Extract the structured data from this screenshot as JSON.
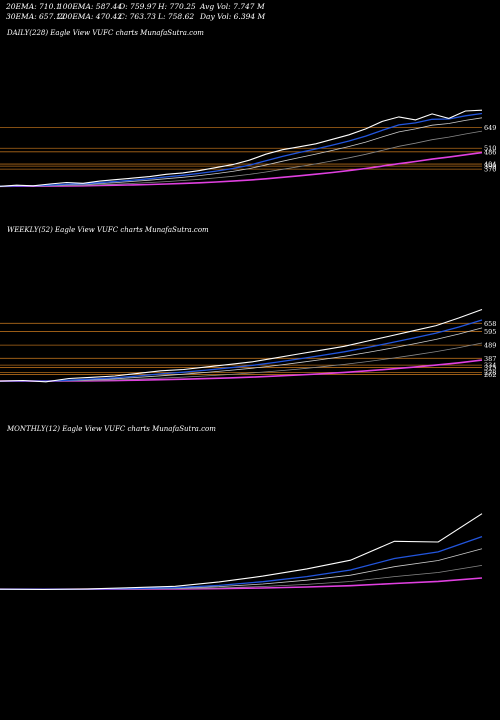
{
  "header": {
    "ema20": "20EMA: 710.1",
    "ema100": "100EMA: 587.44",
    "open": "O: 759.97",
    "high": "H: 770.25",
    "avg_vol": "Avg Vol: 7.747 M",
    "ema30": "30EMA: 657.12",
    "ema200": "200EMA: 470.42",
    "close": "C: 763.73",
    "low": "L: 758.62",
    "day_vol": "Day Vol: 6.394 M"
  },
  "colors": {
    "price": "#ffffff",
    "ema_fast": "#2255dd",
    "ema_mid": "#cccccc",
    "ema_slow": "#888888",
    "ema200": "#e040e0",
    "orange_level": "#b06a1a"
  },
  "chart_data": [
    {
      "type": "line",
      "title": "DAILY(228) Eagle   View  VUFC charts MunafaSutra.com",
      "price_labels": [
        "649",
        "510",
        "486",
        "404",
        "390",
        "370"
      ],
      "levels": [
        649,
        510,
        486,
        404,
        390,
        370
      ],
      "series": [
        {
          "values": [
            255,
            262,
            258,
            270,
            280,
            275,
            290,
            300,
            310,
            320,
            335,
            345,
            360,
            380,
            400,
            430,
            470,
            500,
            520,
            540,
            570,
            600,
            640,
            690,
            720,
            700,
            740,
            710,
            760,
            765
          ]
        }
      ]
    },
    {
      "type": "line",
      "title": "WEEKLY(52) Eagle   View  VUFC charts MunafaSutra.com",
      "price_labels": [
        "658",
        "595",
        "489",
        "387",
        "334",
        "315",
        "278",
        "262"
      ],
      "levels": [
        658,
        595,
        489,
        387,
        334,
        315,
        278,
        262
      ],
      "series": [
        {
          "values": [
            210,
            215,
            205,
            230,
            240,
            250,
            270,
            290,
            300,
            320,
            340,
            360,
            390,
            420,
            450,
            480,
            520,
            560,
            600,
            640,
            700,
            765
          ]
        }
      ]
    },
    {
      "type": "line",
      "title": "MONTHLY(12) Eagle   View  VUFC charts MunafaSutra.com",
      "price_labels": [],
      "levels": [],
      "series": [
        {
          "values": [
            120,
            118,
            122,
            130,
            140,
            170,
            210,
            260,
            320,
            450,
            445,
            640
          ]
        }
      ]
    }
  ]
}
